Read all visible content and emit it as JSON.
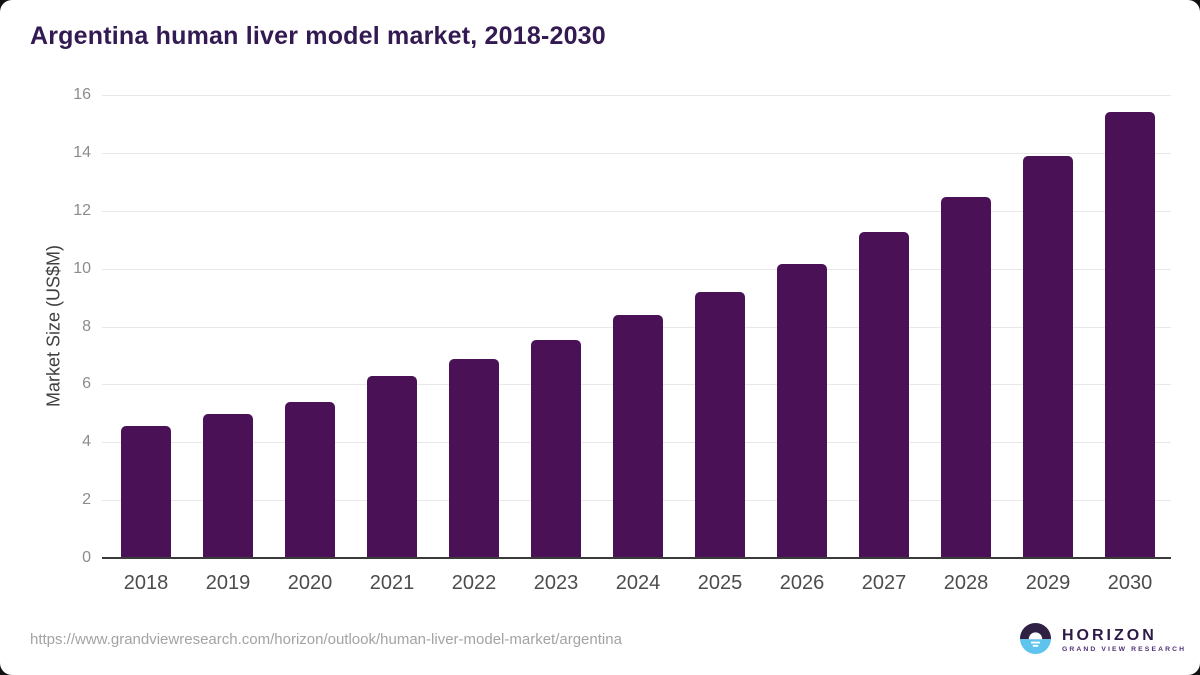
{
  "title": "Argentina human liver model market, 2018-2030",
  "chart_data": {
    "type": "bar",
    "categories": [
      "2018",
      "2019",
      "2020",
      "2021",
      "2022",
      "2023",
      "2024",
      "2025",
      "2026",
      "2027",
      "2028",
      "2029",
      "2030"
    ],
    "values": [
      4.56,
      4.97,
      5.38,
      6.29,
      6.87,
      7.55,
      8.4,
      9.18,
      10.17,
      11.28,
      12.49,
      13.89,
      15.4
    ],
    "title": "Argentina human liver model market, 2018-2030",
    "xlabel": "",
    "ylabel": "Market Size (US$M)",
    "ylim": [
      0,
      16
    ],
    "yticks": [
      0,
      2,
      4,
      6,
      8,
      10,
      12,
      14,
      16
    ],
    "grid": true,
    "legend": "none",
    "bar_color": "#4a1157"
  },
  "footer": {
    "source_url": "https://www.grandviewresearch.com/horizon/outlook/human-liver-model-market/argentina",
    "logo": {
      "name": "HORIZON",
      "subtitle": "GRAND VIEW RESEARCH",
      "mark": "sun-horizon-icon"
    }
  },
  "colors": {
    "bar": "#4a1157",
    "title_text": "#331a52",
    "gridline": "#e8e8e8",
    "axis_line": "#3a3a3a",
    "ytick_text": "#8c8c8c",
    "xtick_text": "#4c4c4c",
    "url_text": "#a3a3a3",
    "logo_purple": "#2f2144",
    "logo_blue": "#5ec3ed"
  }
}
